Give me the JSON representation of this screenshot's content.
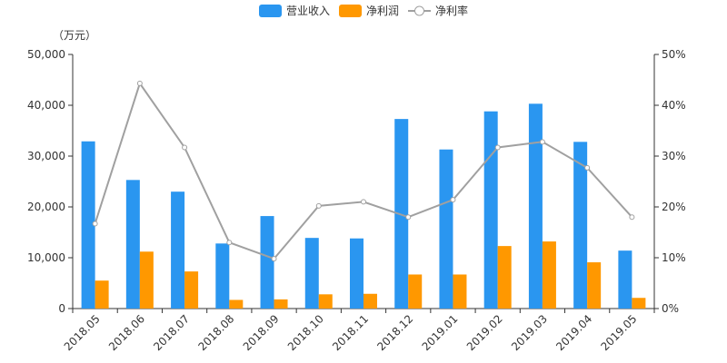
{
  "chart_data": {
    "type": "bar",
    "unit_label": "（万元）",
    "categories": [
      "2018.05",
      "2018.06",
      "2018.07",
      "2018.08",
      "2018.09",
      "2018.10",
      "2018.11",
      "2018.12",
      "2019.01",
      "2019.02",
      "2019.03",
      "2019.04",
      "2019.05"
    ],
    "series": [
      {
        "name": "营业收入",
        "kind": "bar",
        "axis": "left",
        "color": "#2a96f0",
        "values": [
          32900,
          25300,
          23000,
          12800,
          18200,
          13900,
          13800,
          37300,
          31300,
          38800,
          40300,
          32800,
          11400
        ]
      },
      {
        "name": "净利润",
        "kind": "bar",
        "axis": "left",
        "color": "#ff9800",
        "values": [
          5500,
          11200,
          7300,
          1700,
          1800,
          2800,
          2900,
          6700,
          6700,
          12300,
          13200,
          9100,
          2100
        ]
      },
      {
        "name": "净利率",
        "kind": "line",
        "axis": "right",
        "color": "#a0a0a0",
        "values": [
          16.7,
          44.3,
          31.7,
          13.0,
          9.8,
          20.2,
          21.0,
          18.0,
          21.4,
          31.7,
          32.8,
          27.7,
          18.0
        ]
      }
    ],
    "y_left": {
      "min": 0,
      "max": 50000,
      "ticks": [
        "0",
        "10,000",
        "20,000",
        "30,000",
        "40,000",
        "50,000"
      ]
    },
    "y_right": {
      "min": 0,
      "max": 50,
      "ticks": [
        "0%",
        "10%",
        "20%",
        "30%",
        "40%",
        "50%"
      ]
    },
    "legend": {
      "position": "top-center"
    },
    "grid": false
  }
}
